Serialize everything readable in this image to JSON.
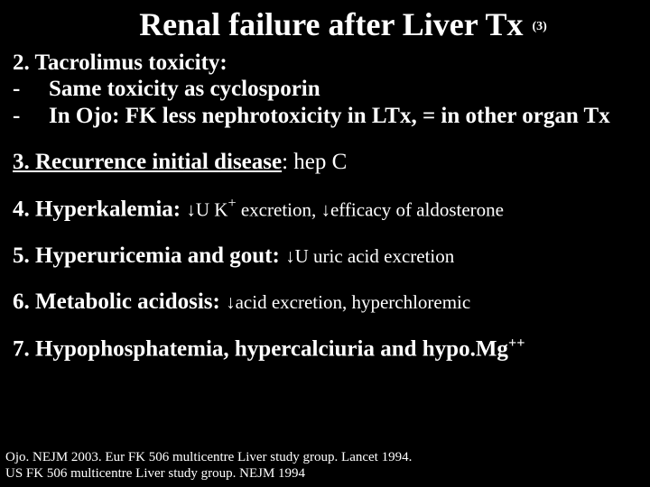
{
  "colors": {
    "background": "#000000",
    "text": "#ffffff"
  },
  "title": {
    "main": "Renal failure after Liver Tx",
    "suffix": "(3)",
    "fontsize": 36
  },
  "section2": {
    "heading": "2. Tacrolimus toxicity:",
    "bullets": [
      "Same toxicity as cyclosporin",
      "In Ojo: FK less nephrotoxicity in LTx, = in other organ Tx"
    ]
  },
  "section3": {
    "heading": "3. Recurrence initial disease",
    "rest": ": hep C"
  },
  "section4": {
    "heading": "4. Hyperkalemia: ",
    "arrow1": "↓",
    "part1": "U K",
    "sup1": "+",
    "part2": " excretion, ",
    "arrow2": "↓",
    "part3": "efficacy of aldosterone"
  },
  "section5": {
    "heading": "5. Hyperuricemia and gout: ",
    "arrow": "↓",
    "rest": "U uric acid excretion"
  },
  "section6": {
    "heading": "6. Metabolic acidosis: ",
    "arrow": "↓",
    "rest": "acid excretion, hyperchloremic"
  },
  "section7": {
    "heading_a": "7. Hypophosphatemia, hypercalciuria and hypo.Mg",
    "sup": "++"
  },
  "refs": {
    "line1": "Ojo. NEJM 2003. Eur FK 506 multicentre Liver study group. Lancet 1994.",
    "line2": "US FK 506 multicentre Liver study group. NEJM 1994"
  }
}
